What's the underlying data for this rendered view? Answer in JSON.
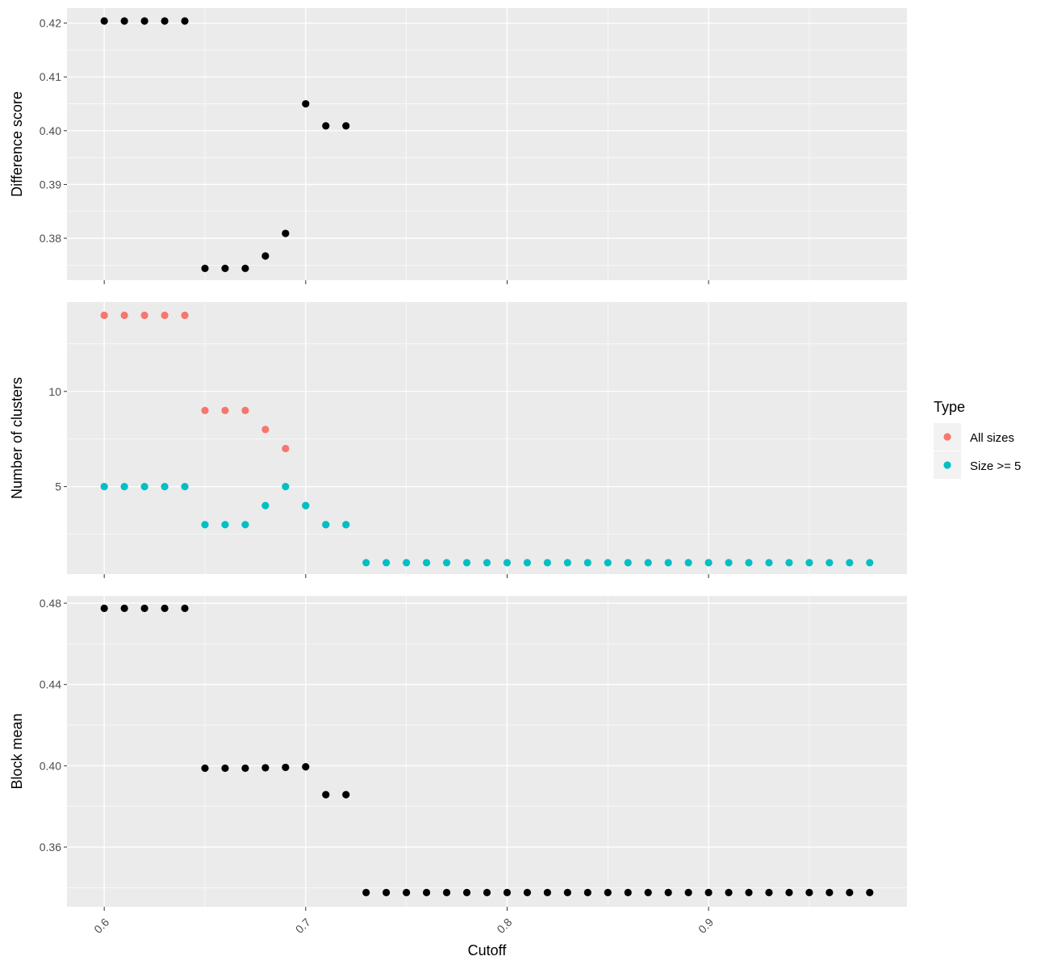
{
  "chart_data": {
    "type": "scatter",
    "xlabel": "Cutoff",
    "x_ticks": [
      "0.6",
      "0.7",
      "0.8",
      "0.9"
    ],
    "x_tick_values": [
      0.6,
      0.7,
      0.8,
      0.9
    ],
    "xlim": [
      0.5815,
      0.9985
    ],
    "grid": true,
    "legend": {
      "title": "Type",
      "position": "right",
      "entries": [
        {
          "label": "All sizes",
          "color": "#F8766D"
        },
        {
          "label": "Size >= 5",
          "color": "#00BFC4"
        }
      ]
    },
    "panels": [
      {
        "ylabel": "Difference score",
        "ylim": [
          0.3722,
          0.4228
        ],
        "y_ticks": [
          "0.38",
          "0.39",
          "0.40",
          "0.41",
          "0.42"
        ],
        "y_tick_values": [
          0.38,
          0.39,
          0.4,
          0.41,
          0.42
        ],
        "series": [
          {
            "color": "#000000",
            "points": [
              [
                0.6,
                0.4204
              ],
              [
                0.61,
                0.4204
              ],
              [
                0.62,
                0.4204
              ],
              [
                0.63,
                0.4204
              ],
              [
                0.64,
                0.4204
              ],
              [
                0.65,
                0.3744
              ],
              [
                0.66,
                0.3744
              ],
              [
                0.67,
                0.3744
              ],
              [
                0.68,
                0.3767
              ],
              [
                0.69,
                0.3809
              ],
              [
                0.7,
                0.405
              ],
              [
                0.71,
                0.4009
              ],
              [
                0.72,
                0.4009
              ]
            ]
          }
        ]
      },
      {
        "ylabel": "Number of clusters",
        "ylim": [
          0.4,
          14.7
        ],
        "y_ticks": [
          "5",
          "10"
        ],
        "y_tick_values": [
          5,
          10
        ],
        "series": [
          {
            "name": "All sizes",
            "color": "#F8766D",
            "points": [
              [
                0.6,
                14
              ],
              [
                0.61,
                14
              ],
              [
                0.62,
                14
              ],
              [
                0.63,
                14
              ],
              [
                0.64,
                14
              ],
              [
                0.65,
                9
              ],
              [
                0.66,
                9
              ],
              [
                0.67,
                9
              ],
              [
                0.68,
                8
              ],
              [
                0.69,
                7
              ],
              [
                0.7,
                4
              ],
              [
                0.71,
                3
              ],
              [
                0.72,
                3
              ]
            ]
          },
          {
            "name": "Size >= 5",
            "color": "#00BFC4",
            "points": [
              [
                0.6,
                5
              ],
              [
                0.61,
                5
              ],
              [
                0.62,
                5
              ],
              [
                0.63,
                5
              ],
              [
                0.64,
                5
              ],
              [
                0.65,
                3
              ],
              [
                0.66,
                3
              ],
              [
                0.67,
                3
              ],
              [
                0.68,
                4
              ],
              [
                0.69,
                5
              ],
              [
                0.7,
                4
              ],
              [
                0.71,
                3
              ],
              [
                0.72,
                3
              ],
              [
                0.73,
                1
              ],
              [
                0.74,
                1
              ],
              [
                0.75,
                1
              ],
              [
                0.76,
                1
              ],
              [
                0.77,
                1
              ],
              [
                0.78,
                1
              ],
              [
                0.79,
                1
              ],
              [
                0.8,
                1
              ],
              [
                0.81,
                1
              ],
              [
                0.82,
                1
              ],
              [
                0.83,
                1
              ],
              [
                0.84,
                1
              ],
              [
                0.85,
                1
              ],
              [
                0.86,
                1
              ],
              [
                0.87,
                1
              ],
              [
                0.88,
                1
              ],
              [
                0.89,
                1
              ],
              [
                0.9,
                1
              ],
              [
                0.91,
                1
              ],
              [
                0.92,
                1
              ],
              [
                0.93,
                1
              ],
              [
                0.94,
                1
              ],
              [
                0.95,
                1
              ],
              [
                0.96,
                1
              ],
              [
                0.97,
                1
              ],
              [
                0.98,
                1
              ]
            ]
          }
        ]
      },
      {
        "ylabel": "Block mean",
        "ylim": [
          0.3306,
          0.4836
        ],
        "y_ticks": [
          "0.36",
          "0.40",
          "0.44",
          "0.48"
        ],
        "y_tick_values": [
          0.36,
          0.4,
          0.44,
          0.48
        ],
        "series": [
          {
            "color": "#000000",
            "points": [
              [
                0.6,
                0.4775
              ],
              [
                0.61,
                0.4775
              ],
              [
                0.62,
                0.4775
              ],
              [
                0.63,
                0.4775
              ],
              [
                0.64,
                0.4775
              ],
              [
                0.65,
                0.3988
              ],
              [
                0.66,
                0.3988
              ],
              [
                0.67,
                0.3988
              ],
              [
                0.68,
                0.399
              ],
              [
                0.69,
                0.3992
              ],
              [
                0.7,
                0.3995
              ],
              [
                0.71,
                0.3858
              ],
              [
                0.72,
                0.3858
              ],
              [
                0.73,
                0.3376
              ],
              [
                0.74,
                0.3376
              ],
              [
                0.75,
                0.3376
              ],
              [
                0.76,
                0.3376
              ],
              [
                0.77,
                0.3376
              ],
              [
                0.78,
                0.3376
              ],
              [
                0.79,
                0.3376
              ],
              [
                0.8,
                0.3376
              ],
              [
                0.81,
                0.3376
              ],
              [
                0.82,
                0.3376
              ],
              [
                0.83,
                0.3376
              ],
              [
                0.84,
                0.3376
              ],
              [
                0.85,
                0.3376
              ],
              [
                0.86,
                0.3376
              ],
              [
                0.87,
                0.3376
              ],
              [
                0.88,
                0.3376
              ],
              [
                0.89,
                0.3376
              ],
              [
                0.9,
                0.3376
              ],
              [
                0.91,
                0.3376
              ],
              [
                0.92,
                0.3376
              ],
              [
                0.93,
                0.3376
              ],
              [
                0.94,
                0.3376
              ],
              [
                0.95,
                0.3376
              ],
              [
                0.96,
                0.3376
              ],
              [
                0.97,
                0.3376
              ],
              [
                0.98,
                0.3376
              ]
            ]
          }
        ]
      }
    ]
  }
}
